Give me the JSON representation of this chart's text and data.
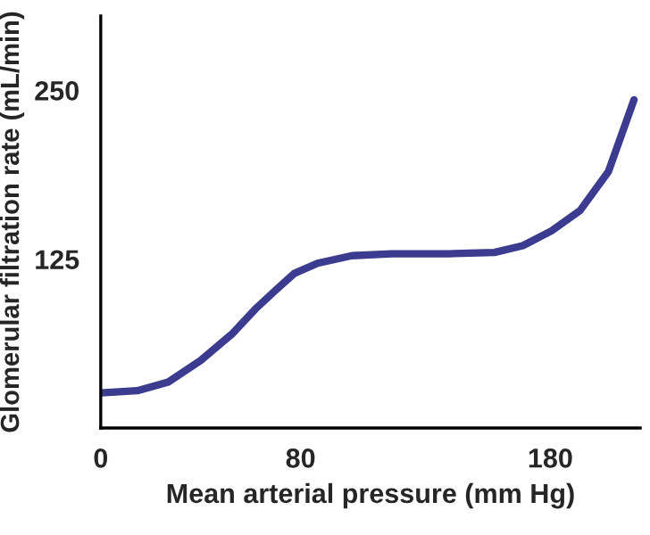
{
  "chart_data": {
    "type": "line",
    "xlabel": "Mean arterial pressure (mm Hg)",
    "ylabel": "Glomerular filtration rate (mL/min)",
    "x": [
      0,
      14.6,
      27,
      40,
      52.8,
      62.4,
      70,
      77.5,
      86.8,
      100.5,
      116.4,
      139,
      157.6,
      169,
      180.5,
      191.9,
      203.3,
      213.5
    ],
    "series": [
      {
        "color": "#3b3b8f",
        "values": [
          26,
          27.6,
          34,
          50,
          70,
          89,
          102,
          114.5,
          122,
          127.6,
          129,
          129,
          130,
          135,
          146,
          161,
          190,
          243
        ]
      }
    ],
    "xlim": [
      0,
      216
    ],
    "ylim": [
      0,
      305
    ],
    "xticks": [
      0,
      80,
      180
    ],
    "yticks": [
      125,
      250
    ],
    "grid": false,
    "legend": false,
    "marker": "none",
    "line_style": "solid"
  }
}
